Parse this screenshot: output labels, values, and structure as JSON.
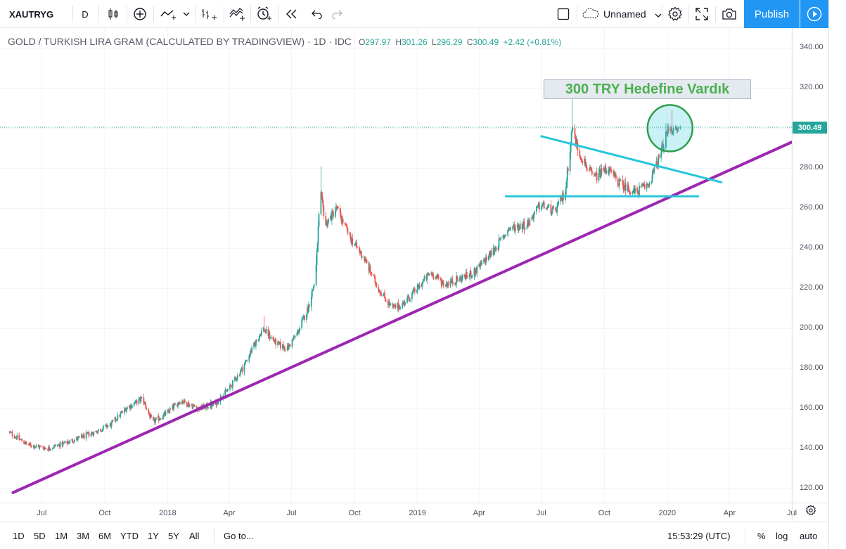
{
  "toolbar": {
    "symbol": "XAUTRYG",
    "interval": "D",
    "layout_name": "Unnamed",
    "publish_label": "Publish",
    "icons": [
      "candles-icon",
      "add-indicator-icon",
      "line-chart-icon",
      "chevron-down-icon",
      "compare-icon",
      "indicators-icon",
      "alert-icon",
      "replay-icon",
      "undo-icon",
      "redo-icon",
      "fullscreen-square-icon",
      "cloud-icon",
      "gear-icon",
      "fullscreen-icon",
      "camera-icon",
      "play-icon"
    ]
  },
  "legend": {
    "title": "GOLD / TURKISH LIRA GRAM (CALCULATED BY TRADINGVIEW) · 1D · IDC",
    "o_label": "O",
    "o": "297.97",
    "h_label": "H",
    "h": "301.26",
    "l_label": "L",
    "l": "296.29",
    "c_label": "C",
    "c": "300.49",
    "change": "+2.42 (+0.81%)"
  },
  "annotation_text": "300 TRY Hedefine Vardık",
  "last_price": "300.49",
  "price_axis": {
    "ticks": [
      "340.00",
      "320.00",
      "300.00",
      "280.00",
      "260.00",
      "240.00",
      "220.00",
      "200.00",
      "180.00",
      "160.00",
      "140.00",
      "120.00"
    ]
  },
  "time_axis": {
    "ticks": [
      "Jul",
      "Oct",
      "2018",
      "Apr",
      "Jul",
      "Oct",
      "2019",
      "Apr",
      "Jul",
      "Oct",
      "2020",
      "Apr",
      "Jul"
    ]
  },
  "bottom_bar": {
    "ranges": [
      "1D",
      "5D",
      "1M",
      "3M",
      "6M",
      "YTD",
      "1Y",
      "5Y",
      "All"
    ],
    "goto": "Go to...",
    "clock": "15:53:29 (UTC)",
    "percent": "%",
    "log": "log",
    "auto": "auto"
  },
  "colors": {
    "up": "#26a69a",
    "down": "#ef5350",
    "trendline": "#9c27b0",
    "channel": "#26c6da",
    "accent": "#2196f3",
    "annotation_text": "#4caf50"
  },
  "chart_data": {
    "type": "candlestick",
    "x_start": "2017-05",
    "x_end": "2020-07",
    "ylim": [
      113,
      350
    ],
    "series_close_approx": [
      [
        "2017-05-15",
        148
      ],
      [
        "2017-06-10",
        142
      ],
      [
        "2017-07-10",
        140
      ],
      [
        "2017-08-15",
        144
      ],
      [
        "2017-09-15",
        148
      ],
      [
        "2017-10-10",
        152
      ],
      [
        "2017-11-01",
        160
      ],
      [
        "2017-11-25",
        165
      ],
      [
        "2017-12-10",
        153
      ],
      [
        "2018-01-01",
        158
      ],
      [
        "2018-01-20",
        164
      ],
      [
        "2018-02-15",
        160
      ],
      [
        "2018-03-10",
        162
      ],
      [
        "2018-04-01",
        170
      ],
      [
        "2018-04-20",
        180
      ],
      [
        "2018-05-05",
        190
      ],
      [
        "2018-05-20",
        200
      ],
      [
        "2018-06-10",
        192
      ],
      [
        "2018-06-25",
        190
      ],
      [
        "2018-07-10",
        198
      ],
      [
        "2018-07-25",
        210
      ],
      [
        "2018-08-05",
        225
      ],
      [
        "2018-08-12",
        268
      ],
      [
        "2018-08-20",
        252
      ],
      [
        "2018-09-05",
        260
      ],
      [
        "2018-09-25",
        245
      ],
      [
        "2018-10-15",
        235
      ],
      [
        "2018-11-05",
        220
      ],
      [
        "2018-11-25",
        210
      ],
      [
        "2018-12-10",
        212
      ],
      [
        "2019-01-01",
        220
      ],
      [
        "2019-01-20",
        228
      ],
      [
        "2019-02-10",
        222
      ],
      [
        "2019-03-05",
        225
      ],
      [
        "2019-03-25",
        228
      ],
      [
        "2019-04-20",
        238
      ],
      [
        "2019-05-15",
        250
      ],
      [
        "2019-06-10",
        252
      ],
      [
        "2019-06-30",
        262
      ],
      [
        "2019-07-20",
        258
      ],
      [
        "2019-08-05",
        268
      ],
      [
        "2019-08-15",
        300
      ],
      [
        "2019-08-25",
        288
      ],
      [
        "2019-09-15",
        275
      ],
      [
        "2019-10-05",
        280
      ],
      [
        "2019-10-25",
        272
      ],
      [
        "2019-11-15",
        268
      ],
      [
        "2019-12-05",
        272
      ],
      [
        "2019-12-20",
        285
      ],
      [
        "2020-01-05",
        302
      ],
      [
        "2020-01-10",
        298
      ],
      [
        "2020-01-20",
        300
      ]
    ],
    "drawings": {
      "support_trendline": {
        "from": [
          "2017-05-20",
          118
        ],
        "to": [
          "2020-07-20",
          296
        ]
      },
      "descending_line": {
        "from": [
          "2019-07-01",
          296
        ],
        "to": [
          "2020-03-20",
          273
        ]
      },
      "horizontal_support": {
        "from": [
          "2019-05-10",
          266
        ],
        "to": [
          "2020-02-15",
          266
        ]
      },
      "circle_center": [
        "2020-01-05",
        300
      ]
    }
  }
}
